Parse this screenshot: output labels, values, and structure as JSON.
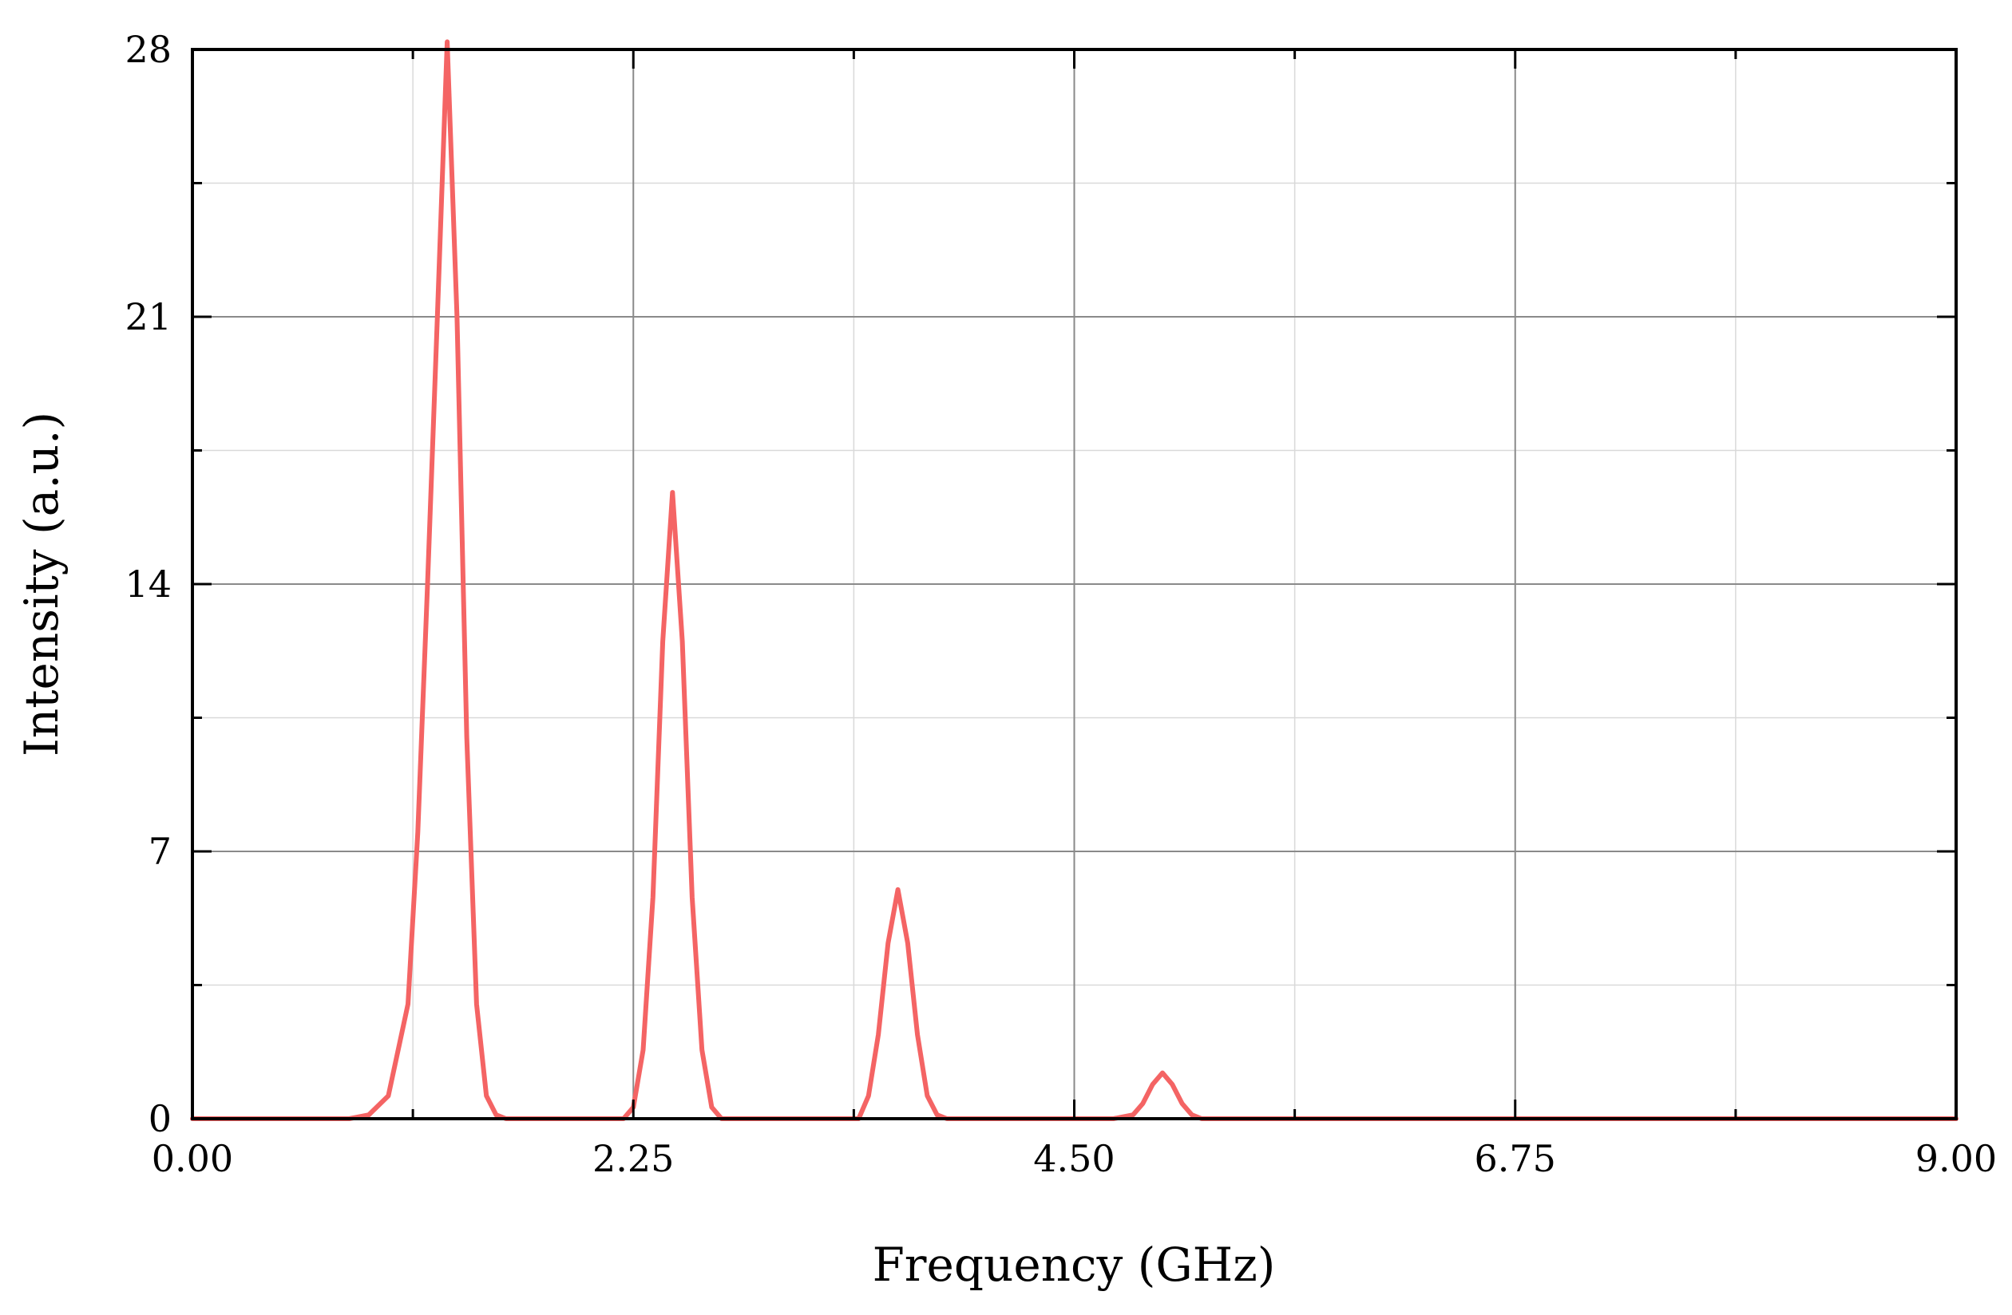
{
  "chart_data": {
    "type": "line",
    "title": "",
    "xlabel": "Frequency (GHz)",
    "ylabel": "Intensity (a.u.)",
    "xlim": [
      0,
      9
    ],
    "ylim": [
      0,
      28
    ],
    "xticks": [
      "0.00",
      "2.25",
      "4.50",
      "6.75",
      "9.00"
    ],
    "yticks": [
      "0",
      "7",
      "14",
      "21",
      "28"
    ],
    "grid": true,
    "legend": "none",
    "colors": {
      "series": "#f46464",
      "baseline": "#cc3333"
    },
    "series": [
      {
        "x": [
          0,
          0.8,
          0.9,
          1.0,
          1.1,
          1.15,
          1.2,
          1.25,
          1.3,
          1.35,
          1.4,
          1.45,
          1.5,
          1.55,
          1.6,
          1.65,
          1.7,
          1.8,
          2.0,
          2.1,
          2.2,
          2.25,
          2.3,
          2.35,
          2.4,
          2.45,
          2.5,
          2.55,
          2.6,
          2.65,
          2.7,
          2.75,
          2.8,
          2.9,
          3.4,
          3.45,
          3.5,
          3.55,
          3.6,
          3.65,
          3.7,
          3.75,
          3.8,
          3.85,
          3.9,
          3.95,
          4.05,
          4.7,
          4.8,
          4.85,
          4.9,
          4.95,
          5.0,
          5.05,
          5.1,
          5.15,
          5.2,
          5.3,
          9.0
        ],
        "y": [
          0,
          0,
          0.1,
          0.6,
          3.0,
          7.5,
          14.0,
          21.0,
          28.2,
          21.0,
          10.0,
          3.0,
          0.6,
          0.1,
          0,
          0,
          0,
          0,
          0,
          0,
          0,
          0.3,
          1.8,
          5.8,
          12.5,
          16.4,
          12.5,
          5.8,
          1.8,
          0.3,
          0,
          0,
          0,
          0,
          0,
          0.6,
          2.2,
          4.6,
          6.0,
          4.6,
          2.2,
          0.6,
          0.1,
          0,
          0,
          0,
          0,
          0,
          0.1,
          0.4,
          0.9,
          1.2,
          0.9,
          0.4,
          0.1,
          0,
          0,
          0,
          0
        ]
      }
    ]
  }
}
